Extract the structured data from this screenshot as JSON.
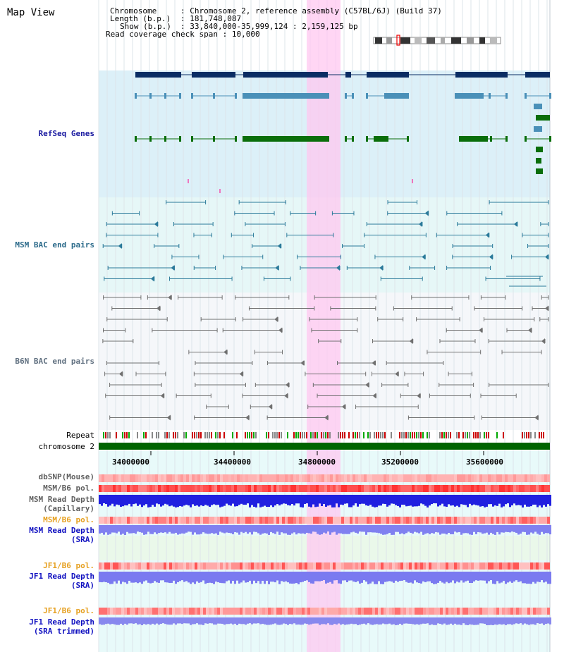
{
  "title": "Map View",
  "info": {
    "chromosome_label": "Chromosome",
    "chromosome_value": "Chromosome 2, reference assembly (C57BL/6J) (Build 37)",
    "length_label": "Length (b.p.)",
    "length_value": "181,748,087",
    "show_label": "Show (b.p.)",
    "show_value": "33,840,000-35,999,124 : 2,159,125 bp",
    "coverage_label": "Read coverage check span",
    "coverage_value": "10,000"
  },
  "tracks": {
    "refseq": "RefSeq Genes",
    "msm_bac": "MSM BAC end pairs",
    "b6n_bac": "B6N BAC end pairs",
    "repeat": "Repeat",
    "chromosome": "chromosome 2",
    "dbsnp": "dbSNP(Mouse)",
    "msm_b6_pol_1": "MSM/B6 pol.",
    "msm_read_depth_cap_1": "MSM Read Depth",
    "msm_read_depth_cap_2": "(Capillary)",
    "msm_b6_pol_2": "MSM/B6 pol.",
    "msm_read_depth_sra_1": "MSM Read Depth",
    "msm_read_depth_sra_2": "(SRA)",
    "jf1_b6_pol_1": "JF1/B6 pol.",
    "jf1_read_depth_1": "JF1 Read Depth",
    "jf1_read_depth_2": "(SRA)",
    "jf1_b6_pol_2": "JF1/B6 pol.",
    "jf1_read_depth_trim_1": "JF1 Read Depth",
    "jf1_read_depth_trim_2": "(SRA trimmed)"
  },
  "axis_ticks": [
    "34000000",
    "34400000",
    "34800000",
    "35200000",
    "35600000"
  ],
  "colors": {
    "refseq_bg": "#dcf0f8",
    "msm_bg": "#e6f7f7",
    "b6n_bg": "#f5f7fa",
    "highlight": "#ffc8f0",
    "gene_dark": "#0a2d64",
    "gene_mid": "#4a90b8",
    "gene_green": "#0a6e0a",
    "msm_line": "#2b7a9a",
    "b6n_line": "#707070",
    "chromosome": "#006400",
    "refseq_label": "#1a1aa0",
    "msm_label": "#2b6a8a",
    "b6n_label": "#607080",
    "pol_orange": "#e6a020",
    "depth_blue": "#1010c0"
  }
}
